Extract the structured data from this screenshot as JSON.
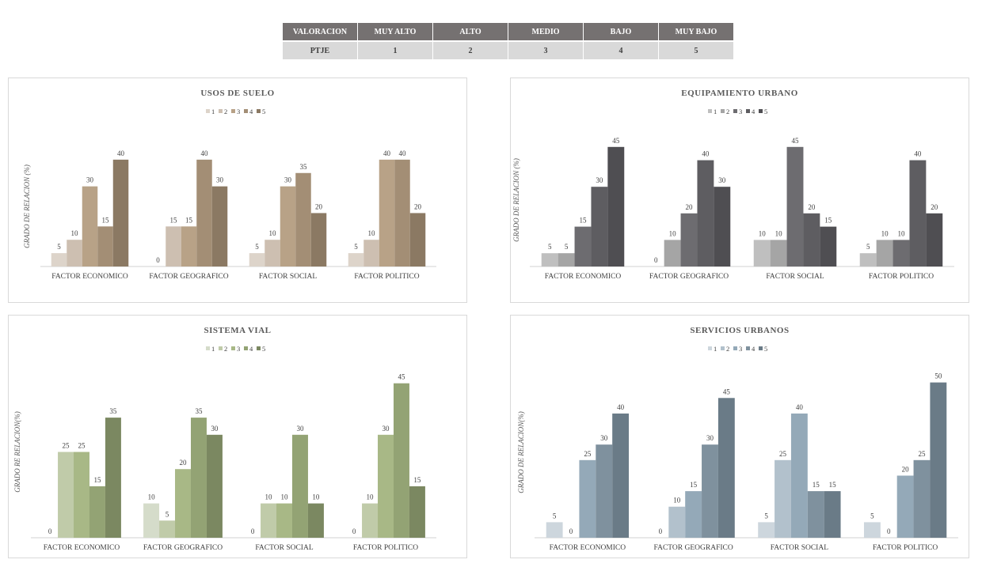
{
  "rating_table": {
    "headers": [
      "VALORACION",
      "MUY ALTO",
      "ALTO",
      "MEDIO",
      "BAJO",
      "MUY BAJO"
    ],
    "row": [
      "PTJE",
      "1",
      "2",
      "3",
      "4",
      "5"
    ]
  },
  "chart_data": [
    {
      "type": "bar",
      "title": "USOS DE SUELO",
      "ylabel": "GRADO DE RELACION (%)",
      "xlabel": "",
      "categories": [
        "FACTOR ECONOMICO",
        "FACTOR GEOGRAFICO",
        "FACTOR SOCIAL",
        "FACTOR POLITICO"
      ],
      "series": [
        {
          "name": "1",
          "values": [
            5,
            0,
            5,
            5
          ],
          "color": "#ddd4ca"
        },
        {
          "name": "2",
          "values": [
            10,
            15,
            10,
            10
          ],
          "color": "#cdbfb1"
        },
        {
          "name": "3",
          "values": [
            30,
            15,
            30,
            40
          ],
          "color": "#b8a287"
        },
        {
          "name": "4",
          "values": [
            15,
            40,
            35,
            40
          ],
          "color": "#a38e75"
        },
        {
          "name": "5",
          "values": [
            40,
            30,
            20,
            20
          ],
          "color": "#8b7963"
        }
      ],
      "ylim": [
        0,
        45
      ]
    },
    {
      "type": "bar",
      "title": "EQUIPAMIENTO  URBANO",
      "ylabel": "GRADO DE RELACION (%)",
      "xlabel": "",
      "categories": [
        "FACTOR ECONOMICO",
        "FACTOR GEOGRAFICO",
        "FACTOR SOCIAL",
        "FACTOR POLITICO"
      ],
      "series": [
        {
          "name": "1",
          "values": [
            5,
            0,
            10,
            5
          ],
          "color": "#bfbfbf"
        },
        {
          "name": "2",
          "values": [
            5,
            10,
            10,
            10
          ],
          "color": "#a5a5a5"
        },
        {
          "name": "3",
          "values": [
            15,
            20,
            45,
            10
          ],
          "color": "#6d6c70"
        },
        {
          "name": "4",
          "values": [
            30,
            40,
            20,
            40
          ],
          "color": "#5e5d61"
        },
        {
          "name": "5",
          "values": [
            45,
            30,
            15,
            20
          ],
          "color": "#4f4e52"
        }
      ],
      "ylim": [
        0,
        50
      ]
    },
    {
      "type": "bar",
      "title": "SISTEMA VIAL",
      "ylabel": "GRADO RE RELACION(%)",
      "xlabel": "",
      "categories": [
        "FACTOR ECONOMICO",
        "FACTOR GEOGRAFICO",
        "FACTOR SOCIAL",
        "FACTOR POLITICO"
      ],
      "series": [
        {
          "name": "1",
          "values": [
            0,
            10,
            0,
            0
          ],
          "color": "#d5dcca"
        },
        {
          "name": "2",
          "values": [
            25,
            5,
            10,
            10
          ],
          "color": "#c0cba9"
        },
        {
          "name": "3",
          "values": [
            25,
            20,
            10,
            30
          ],
          "color": "#a8b886"
        },
        {
          "name": "4",
          "values": [
            15,
            35,
            30,
            45
          ],
          "color": "#93a374"
        },
        {
          "name": "5",
          "values": [
            35,
            30,
            10,
            15
          ],
          "color": "#7b8861"
        }
      ],
      "ylim": [
        0,
        50
      ]
    },
    {
      "type": "bar",
      "title": "SERVICIOS  URBANOS",
      "ylabel": "GRADO DE RELACION(%)",
      "xlabel": "",
      "categories": [
        "FACTOR ECONOMICO",
        "FACTOR GEOGRAFICO",
        "FACTOR SOCIAL",
        "FACTOR POLITICO"
      ],
      "series": [
        {
          "name": "1",
          "values": [
            5,
            0,
            5,
            5
          ],
          "color": "#cdd6dd"
        },
        {
          "name": "2",
          "values": [
            0,
            10,
            25,
            0
          ],
          "color": "#b2c1cc"
        },
        {
          "name": "3",
          "values": [
            25,
            15,
            40,
            20
          ],
          "color": "#94a9b8"
        },
        {
          "name": "4",
          "values": [
            30,
            30,
            15,
            25
          ],
          "color": "#7f919e"
        },
        {
          "name": "5",
          "values": [
            40,
            45,
            15,
            50
          ],
          "color": "#6a7b87"
        }
      ],
      "ylim": [
        0,
        55
      ]
    }
  ]
}
